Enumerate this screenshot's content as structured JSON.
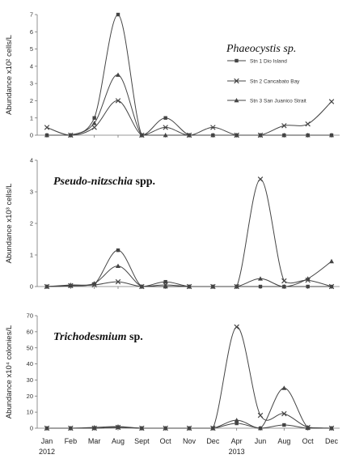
{
  "chart_data": {
    "type": "line",
    "categories": [
      "Jan",
      "Feb",
      "Mar",
      "Aug",
      "Sept",
      "Oct",
      "Nov",
      "Dec",
      "Apr",
      "Jun",
      "Aug",
      "Oct",
      "Dec"
    ],
    "year_labels": [
      {
        "index": 0,
        "label": "2012"
      },
      {
        "index": 8,
        "label": "2013"
      }
    ],
    "series_names": [
      "Stn 1 Dio Island",
      "Stn 2 Cancabato Bay",
      "Stn 3 San Juanico Strait"
    ],
    "colors": {
      "line": "#444444",
      "axis": "#777777"
    },
    "panels": [
      {
        "title_italic": "Phaeocystis sp.",
        "title_plain": "",
        "ylabel": "Abundance  x10² cells/L",
        "ylim": [
          0,
          7
        ],
        "yticks": [
          "0",
          "1",
          "2",
          "3",
          "4",
          "5",
          "6",
          "7"
        ],
        "legend": true,
        "series": [
          {
            "marker": "square",
            "values": [
              0,
              0,
              1.0,
              7.0,
              0,
              1.0,
              0,
              0,
              0,
              0,
              0,
              0,
              0
            ]
          },
          {
            "marker": "x",
            "values": [
              0.45,
              0,
              0.45,
              2.0,
              0,
              0.45,
              0,
              0.45,
              0,
              0,
              0.55,
              0.65,
              1.95
            ]
          },
          {
            "marker": "triangle",
            "values": [
              0,
              0,
              0.7,
              3.5,
              0,
              0,
              0,
              0,
              0,
              0,
              0,
              0,
              0
            ]
          }
        ]
      },
      {
        "title_italic": "Pseudo-nitzschia",
        "title_plain": " spp.",
        "ylabel": "Abundance  x10³ cells/L",
        "ylim": [
          0,
          4
        ],
        "yticks": [
          "0",
          "1",
          "2",
          "3",
          "4"
        ],
        "legend": false,
        "series": [
          {
            "marker": "square",
            "values": [
              0,
              0.02,
              0.08,
              1.15,
              0,
              0.15,
              0,
              0,
              0,
              0,
              0,
              0,
              0
            ]
          },
          {
            "marker": "x",
            "values": [
              0,
              0.03,
              0.05,
              0.15,
              0,
              0.05,
              0,
              0,
              0,
              3.4,
              0.18,
              0.2,
              0
            ]
          },
          {
            "marker": "triangle",
            "values": [
              0,
              0.05,
              0.1,
              0.65,
              0,
              0,
              0,
              0,
              0,
              0.25,
              0,
              0.25,
              0.8
            ]
          }
        ]
      },
      {
        "title_italic": "Trichodesmium",
        "title_plain": " sp.",
        "ylabel": "Abundance  x10⁴ colonies/L",
        "ylim": [
          0,
          70
        ],
        "yticks": [
          "0",
          "10",
          "20",
          "30",
          "40",
          "50",
          "60",
          "70"
        ],
        "legend": false,
        "series": [
          {
            "marker": "square",
            "values": [
              0,
              0,
              0,
              0.5,
              0,
              0,
              0,
              0,
              3.0,
              0,
              2.0,
              0,
              0
            ]
          },
          {
            "marker": "x",
            "values": [
              0,
              0,
              0,
              0.5,
              0,
              0,
              0,
              0,
              63.0,
              8.0,
              9.0,
              0.5,
              0
            ]
          },
          {
            "marker": "triangle",
            "values": [
              0,
              0,
              0.5,
              1.0,
              0,
              0,
              0,
              0,
              5.0,
              0,
              25.0,
              0.5,
              0
            ]
          }
        ]
      }
    ]
  }
}
